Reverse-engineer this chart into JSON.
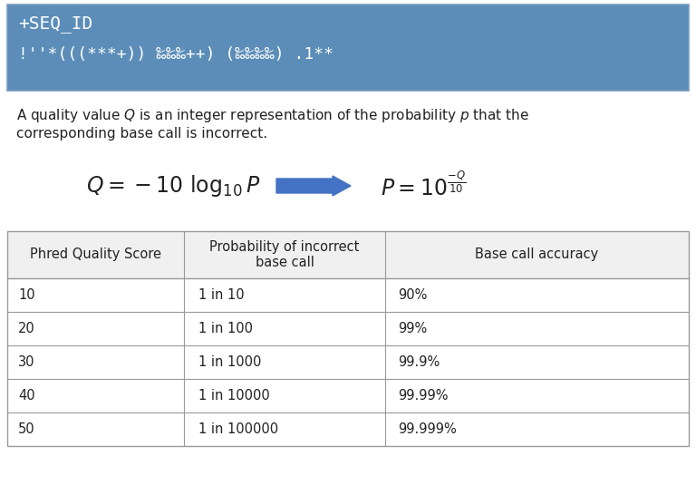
{
  "header_line1": "+SEQ_ID",
  "header_line2": "!''*(((***+)) ‰‰‰++) (‰‰‰‰) .1**",
  "header_bg": "#5b8db8",
  "white": "#ffffff",
  "text_dark": "#222222",
  "arrow_color": "#4472c4",
  "table_header_bg": "#f0f0f0",
  "table_border": "#999999",
  "table_headers": [
    "Phred Quality Score",
    "Probability of incorrect\nbase call",
    "Base call accuracy"
  ],
  "table_rows": [
    [
      "10",
      "1 in 10",
      "90%"
    ],
    [
      "20",
      "1 in 100",
      "99%"
    ],
    [
      "30",
      "1 in 1000",
      "99.9%"
    ],
    [
      "40",
      "1 in 10000",
      "99.99%"
    ],
    [
      "50",
      "1 in 100000",
      "99.999%"
    ]
  ],
  "fig_width": 7.68,
  "fig_height": 5.35,
  "dpi": 100
}
